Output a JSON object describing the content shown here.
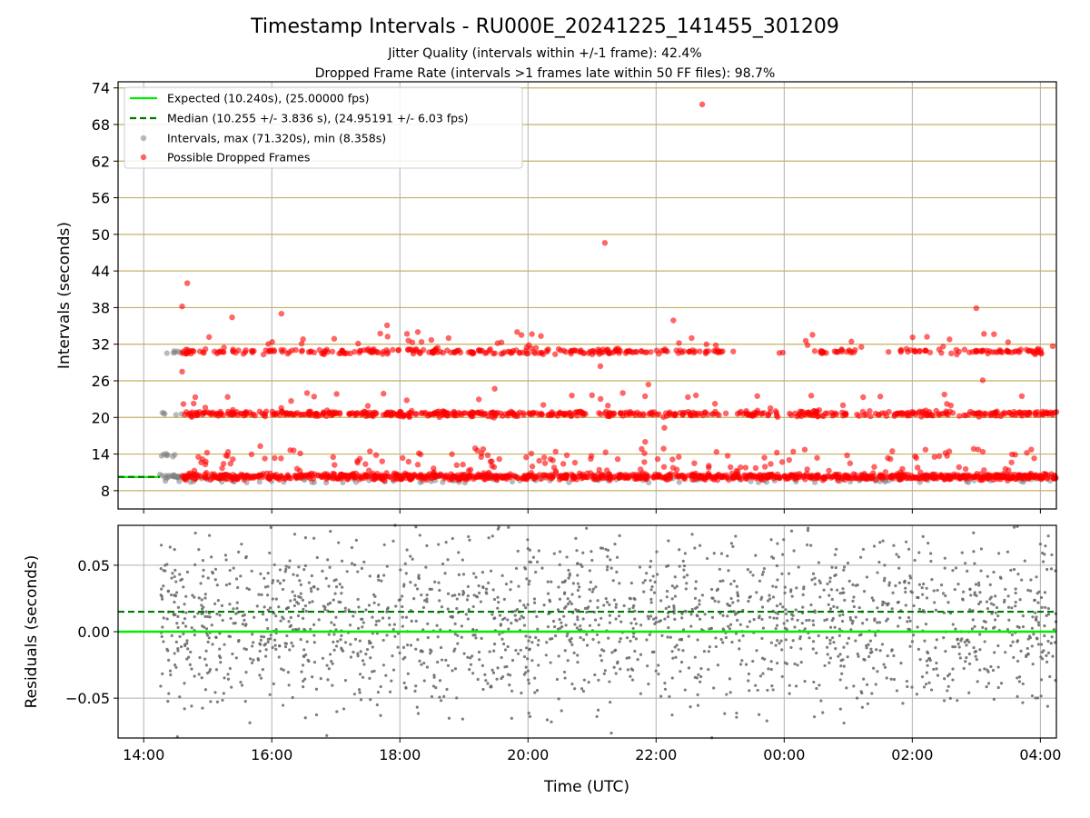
{
  "title": "Timestamp Intervals - RU000E_20241225_141455_301209",
  "subtitle_lines": [
    "Jitter Quality (intervals within +/-1 frame): 42.4%",
    "Dropped Frame Rate (intervals >1 frames late within 50 FF files): 98.7%"
  ],
  "colors": {
    "expected": "#00ee00",
    "median": "#007700",
    "intervals": "#808080",
    "dropped": "#ff0000",
    "hgrid_top": "#c8b060",
    "grid": "#b0b0b0"
  },
  "chart_data": [
    {
      "type": "scatter",
      "panel": "top",
      "ylabel": "Intervals (seconds)",
      "ylim": [
        5,
        75
      ],
      "yticks": [
        "8",
        "14",
        "20",
        "26",
        "32",
        "38",
        "44",
        "50",
        "56",
        "62",
        "68",
        "74"
      ],
      "xlim_hours": [
        13.6,
        28.25
      ],
      "grid": true,
      "legend_placement": "top-left",
      "legend": [
        "Expected (10.240s), (25.00000 fps)",
        "Median (10.255 +/- 3.836 s), (24.95191 +/- 6.03 fps)",
        "Intervals, max (71.320s), min (8.358s)",
        "Possible Dropped Frames"
      ],
      "expected_value": 10.24,
      "median_value": 10.255,
      "bands_seconds": [
        10.24,
        20.48,
        30.72
      ],
      "data_start_hour": 14.25,
      "data_end_hour": 28.25,
      "outliers": [
        {
          "x": 22.72,
          "y": 71.3
        },
        {
          "x": 21.2,
          "y": 48.6
        },
        {
          "x": 14.68,
          "y": 42.0
        },
        {
          "x": 14.6,
          "y": 38.2
        },
        {
          "x": 16.15,
          "y": 37.0
        },
        {
          "x": 15.38,
          "y": 36.4
        },
        {
          "x": 22.27,
          "y": 35.9
        },
        {
          "x": 17.8,
          "y": 35.1
        },
        {
          "x": 27.0,
          "y": 37.9
        },
        {
          "x": 18.28,
          "y": 34.0
        },
        {
          "x": 19.83,
          "y": 34.0
        },
        {
          "x": 27.12,
          "y": 33.7
        },
        {
          "x": 21.48,
          "y": 24.0
        },
        {
          "x": 21.88,
          "y": 25.4
        },
        {
          "x": 23.58,
          "y": 23.5
        },
        {
          "x": 27.1,
          "y": 26.1
        },
        {
          "x": 21.13,
          "y": 28.4
        },
        {
          "x": 14.6,
          "y": 27.5
        },
        {
          "x": 16.55,
          "y": 24.0
        },
        {
          "x": 19.48,
          "y": 24.7
        },
        {
          "x": 22.13,
          "y": 18.3
        },
        {
          "x": 21.83,
          "y": 16.0
        },
        {
          "x": 15.82,
          "y": 15.3
        },
        {
          "x": 19.3,
          "y": 14.8
        },
        {
          "x": 14.62,
          "y": 22.2
        }
      ]
    },
    {
      "type": "scatter",
      "panel": "bottom",
      "xlabel": "Time (UTC)",
      "ylabel": "Residuals (seconds)",
      "ylim": [
        -0.08,
        0.08
      ],
      "yticks": [
        "−0.05",
        "0.00",
        "0.05"
      ],
      "expected_value": 0.0,
      "median_value": 0.015,
      "grid": true
    }
  ],
  "xticks": [
    "14:00",
    "16:00",
    "18:00",
    "20:00",
    "22:00",
    "00:00",
    "02:00",
    "04:00"
  ],
  "xtick_hours": [
    14,
    16,
    18,
    20,
    22,
    24,
    26,
    28
  ]
}
